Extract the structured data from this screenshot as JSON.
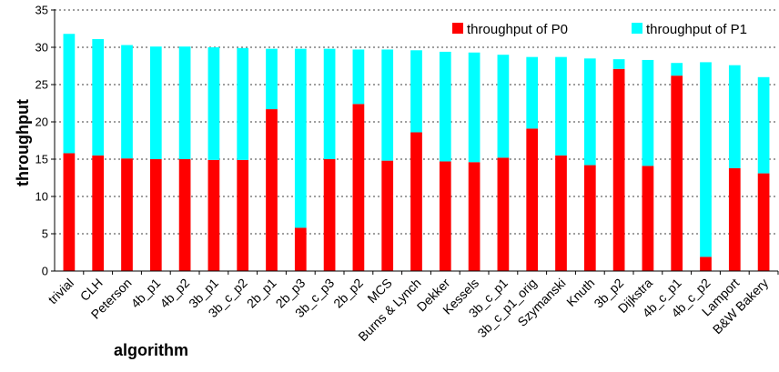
{
  "chart_data": {
    "type": "bar",
    "stacked": true,
    "xlabel": "algorithm",
    "ylabel": "throughput",
    "ylim": [
      0,
      35
    ],
    "yticks": [
      0,
      5,
      10,
      15,
      20,
      25,
      30,
      35
    ],
    "grid": "horizontal dashed",
    "legend_position": "top-right",
    "categories": [
      "trivial",
      "CLH",
      "Peterson",
      "4b_p1",
      "4b_p2",
      "3b_p1",
      "3b_c_p2",
      "2b_p1",
      "2b_p3",
      "3b_c_p3",
      "2b_p2",
      "MCS",
      "Burns & Lynch",
      "Dekker",
      "Kessels",
      "3b_c_p1",
      "3b_c_p1_orig",
      "Szymanski",
      "Knuth",
      "3b_p2",
      "Dijkstra",
      "4b_c_p1",
      "4b_c_p2",
      "Lamport",
      "B&W Bakery"
    ],
    "series": [
      {
        "name": "throughput of P0",
        "color": "#ff0000",
        "values": [
          15.8,
          15.5,
          15.1,
          15.0,
          15.0,
          14.9,
          14.9,
          21.7,
          5.8,
          15.0,
          22.4,
          14.8,
          18.6,
          14.7,
          14.6,
          15.2,
          19.1,
          15.5,
          14.2,
          27.1,
          14.1,
          26.2,
          1.9,
          13.8,
          13.1
        ]
      },
      {
        "name": "throughput of P1",
        "color": "#00ffff",
        "values": [
          16.0,
          15.6,
          15.2,
          15.1,
          15.1,
          15.1,
          15.0,
          8.1,
          24.0,
          14.8,
          7.3,
          14.9,
          11.0,
          14.7,
          14.7,
          13.8,
          9.6,
          13.2,
          14.3,
          1.3,
          14.2,
          1.7,
          26.1,
          13.8,
          12.9
        ]
      }
    ]
  }
}
